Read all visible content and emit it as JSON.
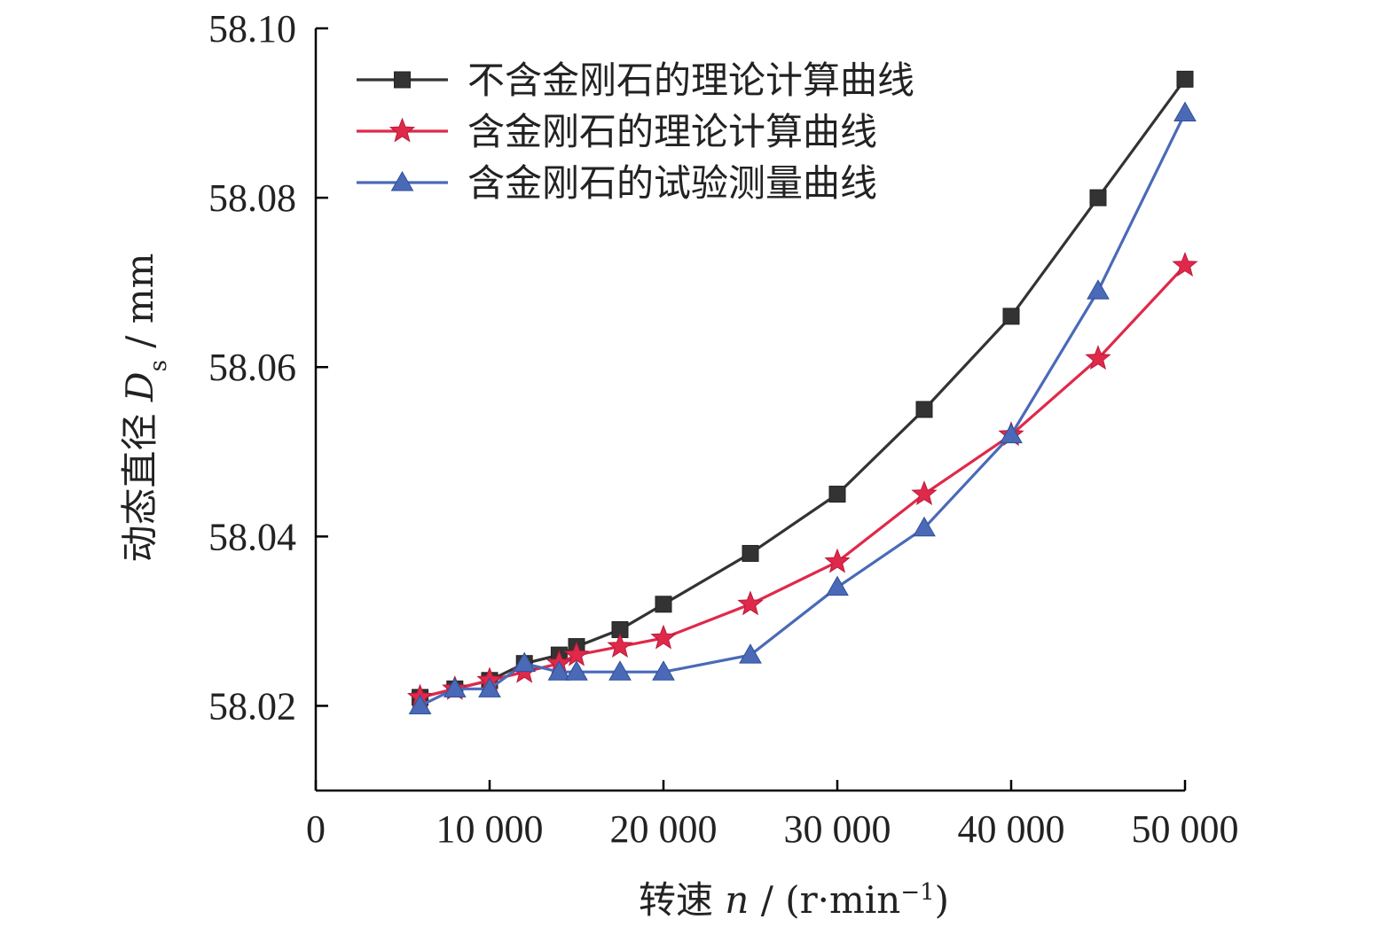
{
  "chart_data": {
    "type": "line",
    "xlabel": {
      "prefix": "转速 ",
      "var": "n",
      "mid": " / (r·min",
      "sup": "−1",
      "suffix": ")"
    },
    "ylabel": {
      "prefix": "动态直径 ",
      "var": "D",
      "sub": "s",
      "suffix": " / mm"
    },
    "xlim": [
      0,
      50000
    ],
    "ylim": [
      58.01,
      58.1
    ],
    "x_ticks": [
      0,
      10000,
      20000,
      30000,
      40000,
      50000
    ],
    "x_tick_labels": [
      "0",
      "10 000",
      "20 000",
      "30 000",
      "40 000",
      "50 000"
    ],
    "y_ticks": [
      58.02,
      58.04,
      58.06,
      58.08,
      58.1
    ],
    "y_tick_labels": [
      "58.02",
      "58.04",
      "58.06",
      "58.08",
      "58.10"
    ],
    "grid": false,
    "legend_position": "top-left",
    "series": [
      {
        "name": "不含金刚石的理论计算曲线",
        "color": "#333333",
        "marker": "square",
        "points": [
          [
            6000,
            58.021
          ],
          [
            8000,
            58.022
          ],
          [
            10000,
            58.023
          ],
          [
            12000,
            58.025
          ],
          [
            14000,
            58.026
          ],
          [
            15000,
            58.027
          ],
          [
            17500,
            58.029
          ],
          [
            20000,
            58.032
          ],
          [
            25000,
            58.038
          ],
          [
            30000,
            58.045
          ],
          [
            35000,
            58.055
          ],
          [
            40000,
            58.066
          ],
          [
            45000,
            58.08
          ],
          [
            50000,
            58.094
          ]
        ]
      },
      {
        "name": "含金刚石的理论计算曲线",
        "color": "#e0294a",
        "marker": "star",
        "points": [
          [
            6000,
            58.021
          ],
          [
            8000,
            58.022
          ],
          [
            10000,
            58.023
          ],
          [
            12000,
            58.024
          ],
          [
            14000,
            58.025
          ],
          [
            15000,
            58.026
          ],
          [
            17500,
            58.027
          ],
          [
            20000,
            58.028
          ],
          [
            25000,
            58.032
          ],
          [
            30000,
            58.037
          ],
          [
            35000,
            58.045
          ],
          [
            40000,
            58.052
          ],
          [
            45000,
            58.061
          ],
          [
            50000,
            58.072
          ]
        ]
      },
      {
        "name": "含金刚石的试验测量曲线",
        "color": "#4a6ab8",
        "marker": "triangle",
        "points": [
          [
            6000,
            58.02
          ],
          [
            8000,
            58.022
          ],
          [
            10000,
            58.022
          ],
          [
            12000,
            58.025
          ],
          [
            14000,
            58.024
          ],
          [
            15000,
            58.024
          ],
          [
            17500,
            58.024
          ],
          [
            20000,
            58.024
          ],
          [
            25000,
            58.026
          ],
          [
            30000,
            58.034
          ],
          [
            35000,
            58.041
          ],
          [
            40000,
            58.052
          ],
          [
            45000,
            58.069
          ],
          [
            50000,
            58.09
          ]
        ]
      }
    ]
  }
}
